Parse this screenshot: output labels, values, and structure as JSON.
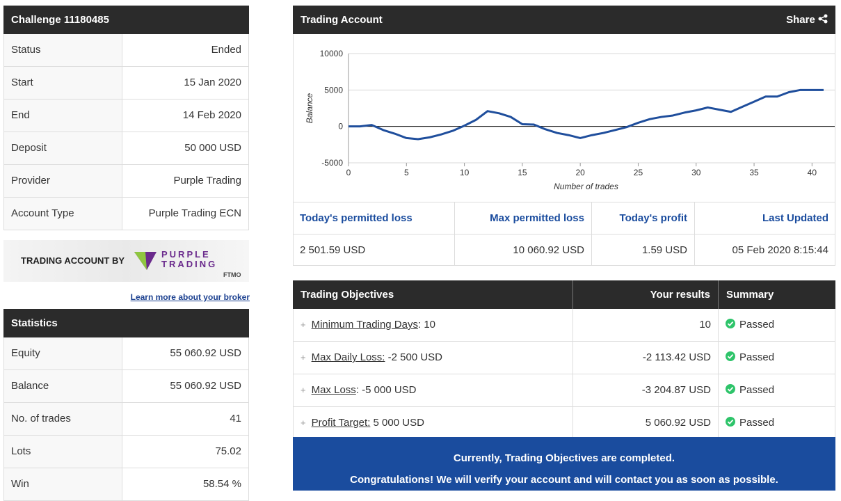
{
  "challenge": {
    "title": "Challenge 11180485",
    "rows": [
      [
        "Status",
        "Ended"
      ],
      [
        "Start",
        "15 Jan 2020"
      ],
      [
        "End",
        "14 Feb 2020"
      ],
      [
        "Deposit",
        "50 000 USD"
      ],
      [
        "Provider",
        "Purple Trading"
      ],
      [
        "Account Type",
        "Purple Trading ECN"
      ]
    ]
  },
  "banner": {
    "text": "TRADING ACCOUNT BY",
    "brand": [
      "PURPLE",
      "TRADING"
    ],
    "sub": "FTMO"
  },
  "broker_link": "Learn more about your broker",
  "statistics": {
    "title": "Statistics",
    "rows": [
      [
        "Equity",
        "55 060.92 USD"
      ],
      [
        "Balance",
        "55 060.92 USD"
      ],
      [
        "No. of trades",
        "41"
      ],
      [
        "Lots",
        "75.02"
      ],
      [
        "Win",
        "58.54 %"
      ]
    ]
  },
  "trading_account": {
    "title": "Trading Account",
    "share": "Share",
    "chart": {
      "type": "line",
      "xlabel": "Number of trades",
      "ylabel": "Balance",
      "color": "#1f4e9c",
      "x": [
        0,
        1,
        2,
        3,
        4,
        5,
        6,
        7,
        8,
        9,
        10,
        11,
        12,
        13,
        14,
        15,
        16,
        17,
        18,
        19,
        20,
        21,
        22,
        23,
        24,
        25,
        26,
        27,
        28,
        29,
        30,
        31,
        32,
        33,
        34,
        35,
        36,
        37,
        38,
        39,
        40,
        41
      ],
      "values": [
        0,
        0,
        200,
        -500,
        -1000,
        -1600,
        -1750,
        -1500,
        -1100,
        -600,
        100,
        900,
        2100,
        1800,
        1300,
        300,
        250,
        -400,
        -900,
        -1200,
        -1600,
        -1200,
        -900,
        -500,
        -100,
        500,
        1000,
        1300,
        1500,
        1900,
        2200,
        2600,
        2300,
        2000,
        2700,
        3400,
        4100,
        4100,
        4700,
        5000,
        5000,
        5000
      ],
      "xlim": [
        0,
        41
      ],
      "ylim": [
        -5000,
        10000
      ],
      "xticks": [
        0,
        5,
        10,
        15,
        20,
        25,
        30,
        35,
        40
      ],
      "yticks": [
        -5000,
        0,
        5000,
        10000
      ],
      "grid": true
    },
    "table": {
      "headers": [
        "Today's permitted loss",
        "Max permitted loss",
        "Today's profit",
        "Last Updated"
      ],
      "values": [
        "2 501.59 USD",
        "10 060.92 USD",
        "1.59 USD",
        "05 Feb 2020 8:15:44"
      ]
    }
  },
  "objectives": {
    "headers": [
      "Trading Objectives",
      "Your results",
      "Summary"
    ],
    "rows": [
      {
        "label": "Minimum Trading Days",
        "target": ": 10",
        "result": "10",
        "summary": "Passed"
      },
      {
        "label": "Max Daily Loss:",
        "target": " -2 500 USD",
        "result": "-2 113.42 USD",
        "summary": "Passed"
      },
      {
        "label": "Max Loss",
        "target": ": -5 000 USD",
        "result": "-3 204.87 USD",
        "summary": "Passed"
      },
      {
        "label": "Profit Target:",
        "target": " 5 000 USD",
        "result": "5 060.92 USD",
        "summary": "Passed"
      }
    ]
  },
  "notice": [
    "Currently, Trading Objectives are completed.",
    "Congratulations! We will verify your account and will contact you as soon as possible."
  ]
}
